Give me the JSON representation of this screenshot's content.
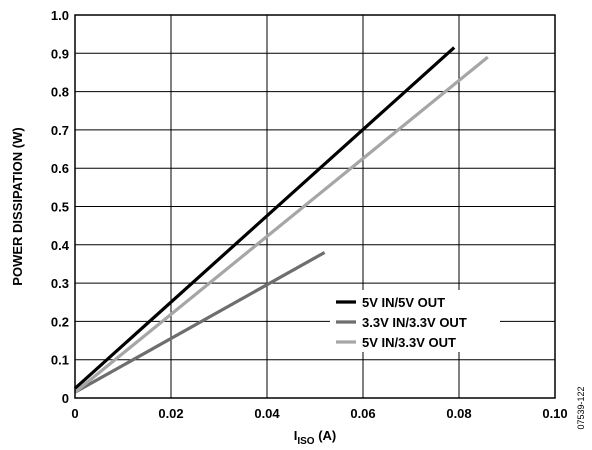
{
  "chart_data": {
    "type": "line",
    "xlabel_main": "I",
    "xlabel_sub": "ISO",
    "xlabel_unit": " (A)",
    "ylabel": "POWER DISSIPATION (W)",
    "xlim": [
      0,
      0.1
    ],
    "ylim": [
      0,
      1.0
    ],
    "xticks": [
      0,
      0.02,
      0.04,
      0.06,
      0.08,
      0.1
    ],
    "xtick_labels": [
      "0",
      "0.02",
      "0.04",
      "0.06",
      "0.08",
      "0.10"
    ],
    "yticks": [
      0,
      0.1,
      0.2,
      0.3,
      0.4,
      0.5,
      0.6,
      0.7,
      0.8,
      0.9,
      1.0
    ],
    "ytick_labels": [
      "0",
      "0.1",
      "0.2",
      "0.3",
      "0.4",
      "0.5",
      "0.6",
      "0.7",
      "0.8",
      "0.9",
      "1.0"
    ],
    "grid": true,
    "legend_placement": "bottom-right",
    "figure_id": "07539-122",
    "series": [
      {
        "name": "5V IN/5V OUT",
        "color": "#000000",
        "x": [
          0,
          0.079
        ],
        "y": [
          0.025,
          0.915
        ]
      },
      {
        "name": "3.3V IN/3.3V OUT",
        "color": "#6e6e6e",
        "x": [
          0,
          0.052
        ],
        "y": [
          0.015,
          0.38
        ]
      },
      {
        "name": "5V IN/3.3V OUT",
        "color": "#a6a6a6",
        "x": [
          0,
          0.086
        ],
        "y": [
          0.015,
          0.89
        ]
      }
    ]
  }
}
